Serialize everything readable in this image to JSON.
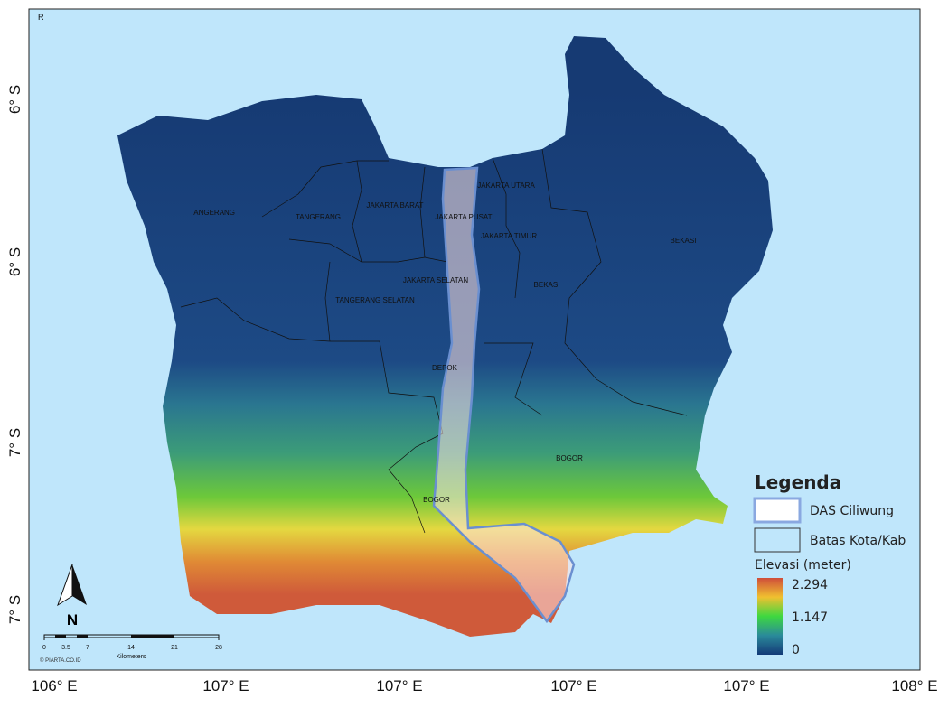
{
  "frame_label": "R",
  "x_axis_labels": [
    "106° E",
    "107° E",
    "107° E",
    "107° E",
    "107° E",
    "108° E"
  ],
  "y_axis_labels": [
    "6° S",
    "6° S",
    "7° S",
    "7° S"
  ],
  "regions": [
    "TANGERANG",
    "TANGERANG",
    "JAKARTA BARAT",
    "JAKARTA PUSAT",
    "JAKARTA UTARA",
    "JAKARTA TIMUR",
    "BEKASI",
    "JAKARTA SELATAN",
    "BEKASI",
    "TANGERANG SELATAN",
    "DEPOK",
    "BOGOR",
    "BOGOR"
  ],
  "legend": {
    "title": "Legenda",
    "items": [
      "DAS Ciliwung",
      "Batas Kota/Kab"
    ],
    "elevation_title": "Elevasi (meter)",
    "elevation_labels": [
      "2.294",
      "1.147",
      "0"
    ]
  },
  "north_arrow": "N",
  "scale_bar": {
    "ticks": [
      "0",
      "3.5",
      "7",
      "14",
      "21",
      "28"
    ],
    "unit": "Kilometers",
    "credit": "© PIARTA.CO.ID"
  }
}
